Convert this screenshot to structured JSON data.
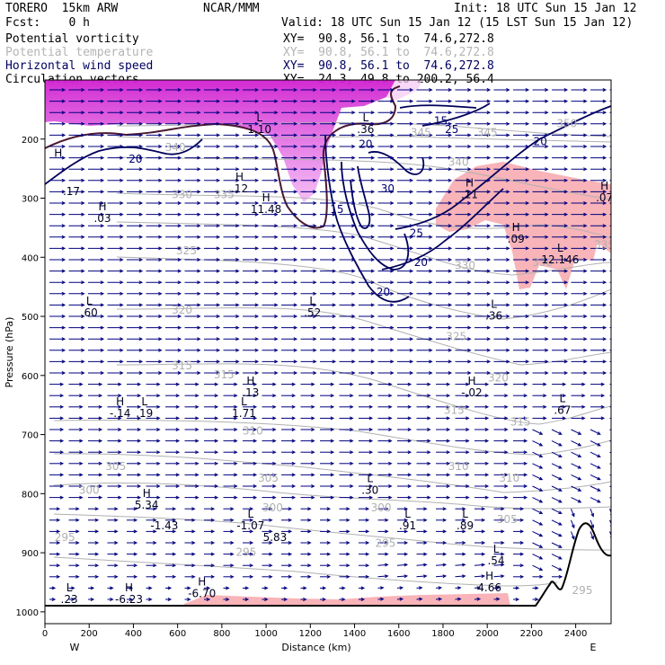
{
  "header": {
    "model": "TORERO  15km ARW",
    "org": "NCAR/MMM",
    "init": "Init: 18 UTC Sun 15 Jan 12",
    "fcst": "Fcst:    0 h",
    "valid": "Valid: 18 UTC Sun 15 Jan 12 (15 LST Sun 15 Jan 12)",
    "fields": [
      {
        "name": "Potential vorticity",
        "xy": "XY=  90.8, 56.1 to  74.6,272.8",
        "color": "#000000"
      },
      {
        "name": "Potential temperature",
        "xy": "XY=  90.8, 56.1 to  74.6,272.8",
        "color": "#b4b4b4"
      },
      {
        "name": "Horizontal wind speed",
        "xy": "XY=  90.8, 56.1 to  74.6,272.8",
        "color": "#000060"
      },
      {
        "name": "Circulation vectors",
        "xy": "XY=  24.3, 49.8 to 200.2, 56.4",
        "color": "#000000"
      }
    ]
  },
  "chart_data": {
    "type": "vertical-cross-section",
    "xlabel": "Distance (km)",
    "ylabel": "Pressure (hPa)",
    "x_ticks": [
      0,
      200,
      400,
      600,
      800,
      1000,
      1200,
      1400,
      1600,
      1800,
      2000,
      2200,
      2400
    ],
    "y_ticks": [
      200,
      300,
      400,
      500,
      600,
      700,
      800,
      900,
      1000
    ],
    "xlim": [
      0,
      2560
    ],
    "ylim": [
      1020,
      100
    ],
    "left_end": "W",
    "right_end": "E",
    "colors": {
      "pv_fill": "#e040e0",
      "pv_neg_fill": "#f7b0b8",
      "wind": "#000070",
      "theta": "#b0b0b0",
      "pv_line": "#4a1830",
      "vector": "#000080",
      "terrain": "#000000"
    },
    "wind_speed_contours": [
      {
        "label": "20",
        "x": 2240,
        "p": 210
      },
      {
        "label": "25",
        "x": 1840,
        "p": 190
      },
      {
        "label": "30",
        "x": 1550,
        "p": 290
      },
      {
        "label": "25",
        "x": 1680,
        "p": 365
      },
      {
        "label": "20",
        "x": 1700,
        "p": 415
      },
      {
        "label": "20",
        "x": 1530,
        "p": 465
      },
      {
        "label": "15",
        "x": 1790,
        "p": 175
      },
      {
        "label": "15",
        "x": 1320,
        "p": 325
      },
      {
        "label": "20",
        "x": 410,
        "p": 240
      },
      {
        "label": "20",
        "x": 1450,
        "p": 215
      }
    ],
    "theta_labels": [
      {
        "label": "350",
        "x": 2360,
        "p": 180
      },
      {
        "label": "345",
        "x": 1700,
        "p": 195
      },
      {
        "label": "345",
        "x": 2000,
        "p": 195
      },
      {
        "label": "340",
        "x": 1870,
        "p": 245
      },
      {
        "label": "340",
        "x": 590,
        "p": 220
      },
      {
        "label": "335",
        "x": 810,
        "p": 300
      },
      {
        "label": "335",
        "x": 2530,
        "p": 385
      },
      {
        "label": "330",
        "x": 1900,
        "p": 420
      },
      {
        "label": "330",
        "x": 2250,
        "p": 415
      },
      {
        "label": "330",
        "x": 620,
        "p": 300
      },
      {
        "label": "325",
        "x": 640,
        "p": 395
      },
      {
        "label": "325",
        "x": 1860,
        "p": 540
      },
      {
        "label": "320",
        "x": 620,
        "p": 495
      },
      {
        "label": "320",
        "x": 2050,
        "p": 610
      },
      {
        "label": "315",
        "x": 620,
        "p": 590
      },
      {
        "label": "315",
        "x": 810,
        "p": 605
      },
      {
        "label": "315",
        "x": 1850,
        "p": 665
      },
      {
        "label": "315",
        "x": 2150,
        "p": 685
      },
      {
        "label": "310",
        "x": 940,
        "p": 700
      },
      {
        "label": "310",
        "x": 1870,
        "p": 760
      },
      {
        "label": "310",
        "x": 2100,
        "p": 780
      },
      {
        "label": "305",
        "x": 320,
        "p": 760
      },
      {
        "label": "305",
        "x": 1010,
        "p": 780
      },
      {
        "label": "305",
        "x": 2090,
        "p": 850
      },
      {
        "label": "300",
        "x": 200,
        "p": 800
      },
      {
        "label": "300",
        "x": 1030,
        "p": 830
      },
      {
        "label": "300",
        "x": 1520,
        "p": 830
      },
      {
        "label": "295",
        "x": 90,
        "p": 880
      },
      {
        "label": "295",
        "x": 910,
        "p": 905
      },
      {
        "label": "295",
        "x": 1540,
        "p": 890
      },
      {
        "label": "295",
        "x": 2430,
        "p": 970
      }
    ],
    "extrema": [
      {
        "kind": "H",
        "value": "",
        "x": 60,
        "p": 250
      },
      {
        "kind": "",
        "value": ".17",
        "x": 120,
        "p": 295
      },
      {
        "kind": "H",
        "value": ".03",
        "x": 260,
        "p": 340
      },
      {
        "kind": "L",
        "value": "1.10",
        "x": 970,
        "p": 190
      },
      {
        "kind": "H",
        "value": ".12",
        "x": 880,
        "p": 290
      },
      {
        "kind": "H",
        "value": "11.48",
        "x": 1000,
        "p": 325
      },
      {
        "kind": "L",
        "value": ".36",
        "x": 1450,
        "p": 190
      },
      {
        "kind": "H",
        "value": ".11",
        "x": 1920,
        "p": 300
      },
      {
        "kind": "H",
        "value": ".09",
        "x": 2130,
        "p": 375
      },
      {
        "kind": "L",
        "value": "12.146",
        "x": 2330,
        "p": 410
      },
      {
        "kind": "H",
        "value": ".07",
        "x": 2530,
        "p": 305
      },
      {
        "kind": "L",
        "value": ".60",
        "x": 200,
        "p": 500
      },
      {
        "kind": "L",
        "value": ".52",
        "x": 1210,
        "p": 500
      },
      {
        "kind": "L",
        "value": ".36",
        "x": 2030,
        "p": 505
      },
      {
        "kind": "H",
        "value": "-.14",
        "x": 340,
        "p": 670
      },
      {
        "kind": "L",
        "value": ".19",
        "x": 450,
        "p": 670
      },
      {
        "kind": "H",
        "value": ".13",
        "x": 930,
        "p": 635
      },
      {
        "kind": "L",
        "value": "1.71",
        "x": 900,
        "p": 670
      },
      {
        "kind": "H",
        "value": "-.02",
        "x": 1930,
        "p": 635
      },
      {
        "kind": "L",
        "value": ".67",
        "x": 2340,
        "p": 665
      },
      {
        "kind": "L",
        "value": ".30",
        "x": 1470,
        "p": 800
      },
      {
        "kind": "H",
        "value": "5.34",
        "x": 460,
        "p": 825
      },
      {
        "kind": "",
        "value": "-1.43",
        "x": 540,
        "p": 860
      },
      {
        "kind": "L",
        "value": "-1.07",
        "x": 930,
        "p": 860
      },
      {
        "kind": "",
        "value": "5.83",
        "x": 1040,
        "p": 880
      },
      {
        "kind": "L",
        "value": ".91",
        "x": 1640,
        "p": 860
      },
      {
        "kind": "L",
        "value": ".89",
        "x": 1900,
        "p": 860
      },
      {
        "kind": "L",
        "value": ".54",
        "x": 2040,
        "p": 920
      },
      {
        "kind": "H",
        "value": "4.66",
        "x": 2010,
        "p": 965
      },
      {
        "kind": "L",
        "value": ".23",
        "x": 110,
        "p": 985
      },
      {
        "kind": "H",
        "value": "-6.23",
        "x": 380,
        "p": 985
      },
      {
        "kind": "H",
        "value": "-6.70",
        "x": 710,
        "p": 975
      }
    ]
  }
}
